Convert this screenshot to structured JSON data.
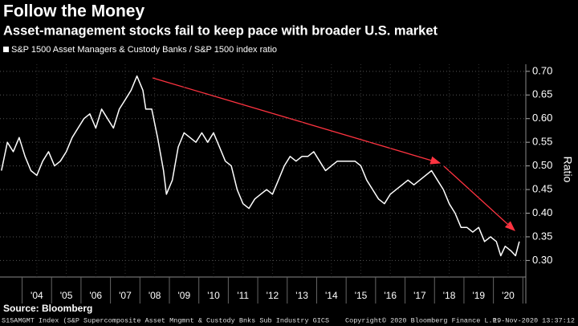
{
  "chart_data": {
    "type": "line",
    "title": "Follow the Money",
    "subtitle": "Asset-management stocks fail to keep pace with broader U.S. market",
    "y_label": "Ratio",
    "source": "Source: Bloomberg",
    "footer_left": "S15AMGMT Index (S&P Supercomposite Asset Mngmnt & Custody Bnks Sub Industry GICS",
    "copyright": "Copyright© 2020 Bloomberg Finance L.P.",
    "timestamp": "19-Nov-2020 13:37:12",
    "x": [
      2003.3,
      2003.5,
      2003.7,
      2003.9,
      2004.1,
      2004.3,
      2004.5,
      2004.7,
      2004.9,
      2005.1,
      2005.3,
      2005.5,
      2005.7,
      2005.9,
      2006.1,
      2006.3,
      2006.5,
      2006.7,
      2006.9,
      2007.1,
      2007.3,
      2007.5,
      2007.7,
      2007.9,
      2008.1,
      2008.2,
      2008.4,
      2008.6,
      2008.8,
      2008.9,
      2009.1,
      2009.3,
      2009.5,
      2009.7,
      2009.9,
      2010.1,
      2010.3,
      2010.5,
      2010.7,
      2010.9,
      2011.1,
      2011.3,
      2011.5,
      2011.7,
      2011.9,
      2012.1,
      2012.3,
      2012.5,
      2012.7,
      2012.9,
      2013.1,
      2013.3,
      2013.5,
      2013.7,
      2013.9,
      2014.1,
      2014.3,
      2014.5,
      2014.7,
      2014.9,
      2015.1,
      2015.3,
      2015.5,
      2015.7,
      2015.9,
      2016.1,
      2016.3,
      2016.5,
      2016.7,
      2016.9,
      2017.1,
      2017.3,
      2017.5,
      2017.7,
      2017.9,
      2018.1,
      2018.3,
      2018.5,
      2018.7,
      2018.9,
      2019.1,
      2019.3,
      2019.5,
      2019.7,
      2019.9,
      2020.1,
      2020.25,
      2020.4,
      2020.6,
      2020.75,
      2020.88
    ],
    "series": [
      {
        "name": "S&P 1500 Asset Managers & Custody Banks / S&P 1500 index ratio",
        "color": "#ffffff",
        "values": [
          0.49,
          0.55,
          0.53,
          0.56,
          0.52,
          0.49,
          0.48,
          0.51,
          0.53,
          0.5,
          0.51,
          0.53,
          0.56,
          0.58,
          0.6,
          0.61,
          0.58,
          0.62,
          0.6,
          0.58,
          0.62,
          0.64,
          0.66,
          0.69,
          0.66,
          0.62,
          0.62,
          0.56,
          0.49,
          0.44,
          0.47,
          0.54,
          0.57,
          0.56,
          0.55,
          0.57,
          0.55,
          0.57,
          0.54,
          0.51,
          0.5,
          0.45,
          0.42,
          0.41,
          0.43,
          0.44,
          0.45,
          0.44,
          0.47,
          0.5,
          0.52,
          0.51,
          0.52,
          0.52,
          0.53,
          0.51,
          0.49,
          0.5,
          0.51,
          0.51,
          0.51,
          0.51,
          0.5,
          0.47,
          0.45,
          0.43,
          0.42,
          0.44,
          0.45,
          0.46,
          0.47,
          0.46,
          0.47,
          0.48,
          0.49,
          0.47,
          0.45,
          0.42,
          0.4,
          0.37,
          0.37,
          0.36,
          0.37,
          0.34,
          0.35,
          0.34,
          0.31,
          0.33,
          0.32,
          0.31,
          0.34
        ]
      }
    ],
    "xlim": [
      2003.25,
      2021.1
    ],
    "xticks": [
      {
        "value": 2004.5,
        "label": "'04"
      },
      {
        "value": 2005.5,
        "label": "'05"
      },
      {
        "value": 2006.5,
        "label": "'06"
      },
      {
        "value": 2007.5,
        "label": "'07"
      },
      {
        "value": 2008.5,
        "label": "'08"
      },
      {
        "value": 2009.5,
        "label": "'09"
      },
      {
        "value": 2010.5,
        "label": "'10"
      },
      {
        "value": 2011.5,
        "label": "'11"
      },
      {
        "value": 2012.5,
        "label": "'12"
      },
      {
        "value": 2013.5,
        "label": "'13"
      },
      {
        "value": 2014.5,
        "label": "'14"
      },
      {
        "value": 2015.5,
        "label": "'15"
      },
      {
        "value": 2016.5,
        "label": "'16"
      },
      {
        "value": 2017.5,
        "label": "'17"
      },
      {
        "value": 2018.5,
        "label": "'18"
      },
      {
        "value": 2019.5,
        "label": "'19"
      },
      {
        "value": 2020.5,
        "label": "'20"
      }
    ],
    "ylim": [
      0.265,
      0.715
    ],
    "yticks": [
      {
        "value": 0.3,
        "label": "0.30"
      },
      {
        "value": 0.35,
        "label": "0.35"
      },
      {
        "value": 0.4,
        "label": "0.40"
      },
      {
        "value": 0.45,
        "label": "0.45"
      },
      {
        "value": 0.5,
        "label": "0.50"
      },
      {
        "value": 0.55,
        "label": "0.55"
      },
      {
        "value": 0.6,
        "label": "0.60"
      },
      {
        "value": 0.65,
        "label": "0.65"
      },
      {
        "value": 0.7,
        "label": "0.70"
      }
    ],
    "grid": true
  }
}
